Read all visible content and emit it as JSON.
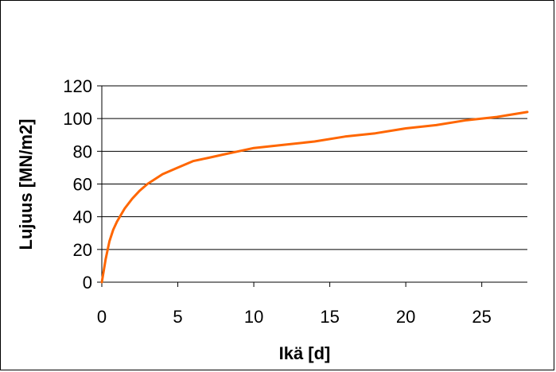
{
  "chart_data": {
    "type": "line",
    "title": "",
    "xlabel": "Ikä [d]",
    "ylabel": "Lujuus [MN/m2]",
    "xlim": [
      0,
      28
    ],
    "ylim": [
      0,
      120
    ],
    "xticks": [
      0,
      5,
      10,
      15,
      20,
      25
    ],
    "yticks": [
      0,
      20,
      40,
      60,
      80,
      100,
      120
    ],
    "x_tick_labels": [
      "0",
      "5",
      "10",
      "15",
      "20",
      "25"
    ],
    "y_tick_labels": [
      "0",
      "20",
      "40",
      "60",
      "80",
      "100",
      "120"
    ],
    "grid": "horizontal",
    "legend": "none",
    "series": [
      {
        "color": "#ff6600",
        "x": [
          0,
          0.25,
          0.5,
          0.75,
          1,
          1.5,
          2,
          2.5,
          3,
          4,
          5,
          6,
          7,
          8,
          9,
          10,
          12,
          14,
          16,
          18,
          20,
          22,
          24,
          26,
          28
        ],
        "y": [
          0,
          14,
          25,
          32,
          37,
          45,
          51,
          56,
          60,
          66,
          70,
          74,
          76,
          78,
          80,
          82,
          84,
          86,
          89,
          91,
          94,
          96,
          99,
          101,
          104
        ]
      }
    ]
  }
}
